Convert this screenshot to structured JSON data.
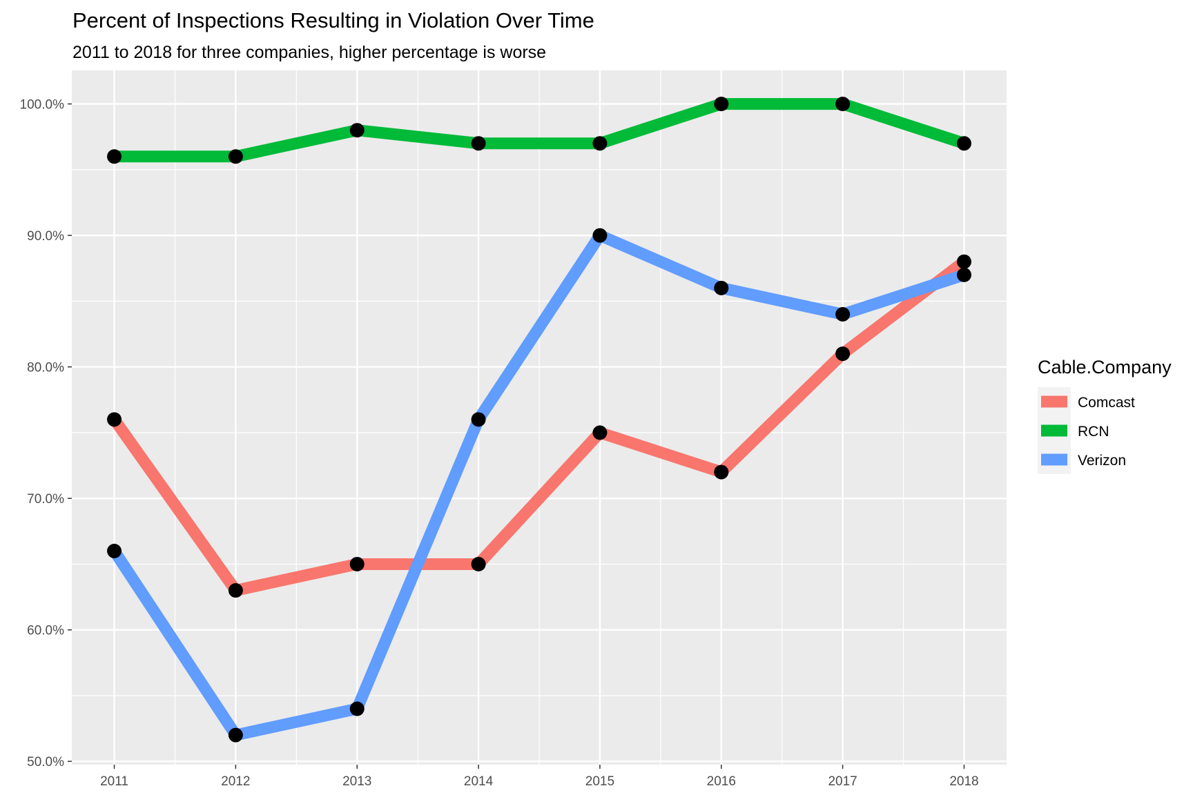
{
  "chart_data": {
    "type": "line",
    "title": "Percent of Inspections Resulting in Violation Over Time",
    "subtitle": "2011 to 2018 for three companies, higher percentage is worse",
    "x": [
      2011,
      2012,
      2013,
      2014,
      2015,
      2016,
      2017,
      2018
    ],
    "x_tick_labels": [
      "2011",
      "2012",
      "2013",
      "2014",
      "2015",
      "2016",
      "2017",
      "2018"
    ],
    "y_tick_values": [
      0.5,
      0.6,
      0.7,
      0.8,
      0.9,
      1.0
    ],
    "y_tick_labels": [
      "50.0%",
      "60.0%",
      "70.0%",
      "80.0%",
      "90.0%",
      "100.0%"
    ],
    "xlim": [
      2010.65,
      2018.35
    ],
    "ylim": [
      0.4975,
      1.0255
    ],
    "grid": true,
    "series": [
      {
        "name": "Comcast",
        "color": "#F8766D",
        "values": [
          0.76,
          0.63,
          0.65,
          0.65,
          0.75,
          0.72,
          0.81,
          0.88
        ]
      },
      {
        "name": "RCN",
        "color": "#00BA38",
        "values": [
          0.96,
          0.96,
          0.98,
          0.97,
          0.97,
          1.0,
          1.0,
          0.97
        ]
      },
      {
        "name": "Verizon",
        "color": "#619CFF",
        "values": [
          0.66,
          0.52,
          0.54,
          0.76,
          0.9,
          0.86,
          0.84,
          0.87
        ]
      }
    ],
    "legend": {
      "title": "Cable.Company",
      "position": "right"
    },
    "point_color": "#000000",
    "panel_background": "#EBEBEB"
  }
}
